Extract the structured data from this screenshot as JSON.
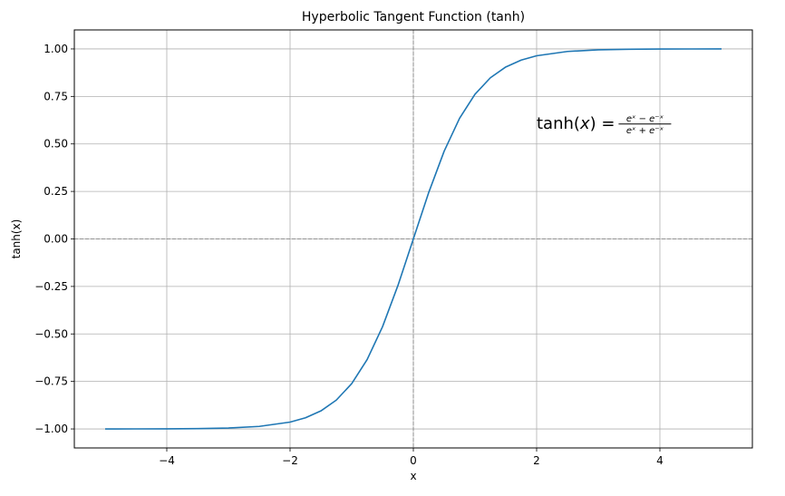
{
  "chart_data": {
    "type": "line",
    "title": "Hyperbolic Tangent Function (tanh)",
    "xlabel": "x",
    "ylabel": "tanh(x)",
    "xlim": [
      -5.5,
      5.5
    ],
    "ylim": [
      -1.1,
      1.1
    ],
    "x_ticks": [
      -4,
      -2,
      0,
      2,
      4
    ],
    "x_tick_labels": [
      "−4",
      "−2",
      "0",
      "2",
      "4"
    ],
    "y_ticks": [
      -1.0,
      -0.75,
      -0.5,
      -0.25,
      0.0,
      0.25,
      0.5,
      0.75,
      1.0
    ],
    "y_tick_labels": [
      "−1.00",
      "−0.75",
      "−0.50",
      "−0.25",
      "0.00",
      "0.25",
      "0.50",
      "0.75",
      "1.00"
    ],
    "grid": true,
    "reference_lines": {
      "x": 0,
      "y": 0
    },
    "series": [
      {
        "color": "#1f77b4",
        "x": [
          -5,
          -4.5,
          -4,
          -3.5,
          -3,
          -2.5,
          -2,
          -1.75,
          -1.5,
          -1.25,
          -1,
          -0.75,
          -0.5,
          -0.25,
          0,
          0.25,
          0.5,
          0.75,
          1,
          1.25,
          1.5,
          1.75,
          2,
          2.5,
          3,
          3.5,
          4,
          4.5,
          5
        ],
        "y": [
          -0.9999,
          -0.9998,
          -0.9993,
          -0.9982,
          -0.9951,
          -0.9866,
          -0.964,
          -0.9414,
          -0.9051,
          -0.8483,
          -0.7616,
          -0.6351,
          -0.4621,
          -0.2449,
          0.0,
          0.2449,
          0.4621,
          0.6351,
          0.7616,
          0.8483,
          0.9051,
          0.9414,
          0.964,
          0.9866,
          0.9951,
          0.9982,
          0.9993,
          0.9998,
          0.9999
        ]
      }
    ],
    "annotation": {
      "x": 2.0,
      "y": 0.6,
      "lhs": "tanh(",
      "var": "x",
      "rhs": ") =",
      "numerator": "eˣ − e⁻ˣ",
      "denominator": "eˣ + e⁻ˣ"
    },
    "colors": {
      "line": "#1f77b4",
      "grid": "#b0b0b0",
      "refline": "#808080"
    }
  }
}
